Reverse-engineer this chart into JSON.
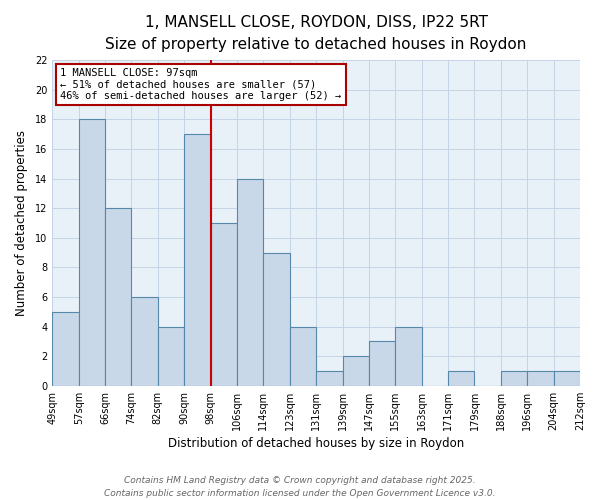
{
  "title": "1, MANSELL CLOSE, ROYDON, DISS, IP22 5RT",
  "subtitle": "Size of property relative to detached houses in Roydon",
  "xlabel": "Distribution of detached houses by size in Roydon",
  "ylabel": "Number of detached properties",
  "bin_labels": [
    "49sqm",
    "57sqm",
    "66sqm",
    "74sqm",
    "82sqm",
    "90sqm",
    "98sqm",
    "106sqm",
    "114sqm",
    "123sqm",
    "131sqm",
    "139sqm",
    "147sqm",
    "155sqm",
    "163sqm",
    "171sqm",
    "179sqm",
    "188sqm",
    "196sqm",
    "204sqm",
    "212sqm"
  ],
  "bar_centers": [
    0,
    1,
    2,
    3,
    4,
    5,
    6,
    7,
    8,
    9,
    10,
    11,
    12,
    13,
    14,
    15,
    16,
    17,
    18,
    19
  ],
  "bar_heights": [
    5,
    18,
    12,
    6,
    4,
    17,
    11,
    14,
    9,
    4,
    1,
    2,
    3,
    4,
    0,
    1,
    0,
    1,
    1,
    1
  ],
  "bar_color": "#c8d8e8",
  "bar_edge_color": "#5588aa",
  "vline_x": 6,
  "vline_color": "#cc0000",
  "annotation_title": "1 MANSELL CLOSE: 97sqm",
  "annotation_line1": "← 51% of detached houses are smaller (57)",
  "annotation_line2": "46% of semi-detached houses are larger (52) →",
  "annotation_box_color": "#ffffff",
  "annotation_box_edge": "#aa0000",
  "ylim": [
    0,
    22
  ],
  "yticks": [
    0,
    2,
    4,
    6,
    8,
    10,
    12,
    14,
    16,
    18,
    20,
    22
  ],
  "n_bins": 20,
  "footer_line1": "Contains HM Land Registry data © Crown copyright and database right 2025.",
  "footer_line2": "Contains public sector information licensed under the Open Government Licence v3.0.",
  "background_color": "#ffffff",
  "plot_bg_color": "#e8f0f8",
  "grid_color": "#c5d5e5",
  "title_fontsize": 11,
  "subtitle_fontsize": 9.5,
  "axis_label_fontsize": 8.5,
  "tick_fontsize": 7,
  "annotation_fontsize": 7.5,
  "footer_fontsize": 6.5
}
